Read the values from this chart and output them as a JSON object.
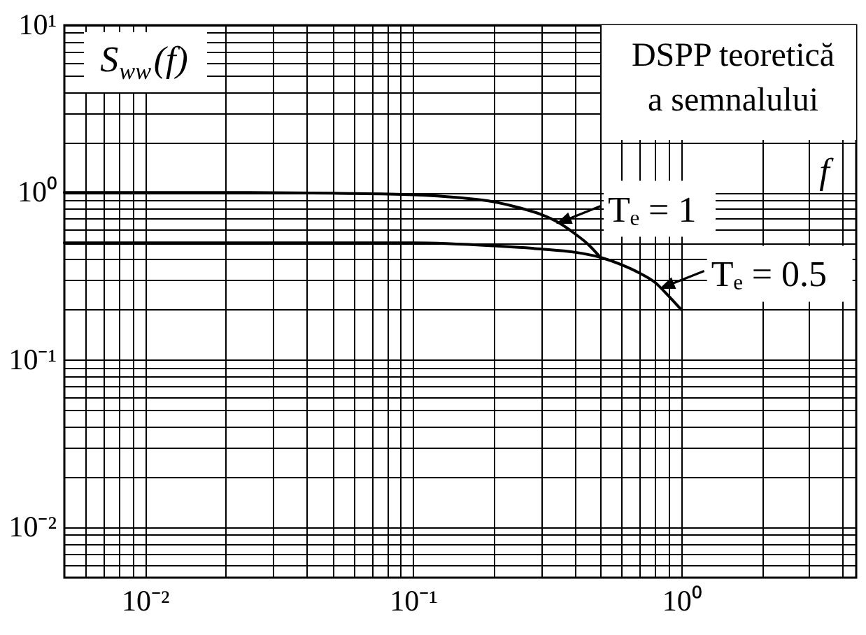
{
  "chart_data": {
    "type": "line",
    "title": "DSPP teoretică a semnalului",
    "xlabel": "f",
    "ylabel": "S$_{ww}$(f)",
    "log": "xy",
    "grid": true,
    "line_style": "solid",
    "xlim": [
      0.005,
      4.5
    ],
    "ylim": [
      0.005,
      10
    ],
    "xticks": [
      {
        "value": 0.006,
        "label": null
      },
      {
        "value": 0.007,
        "label": null
      },
      {
        "value": 0.008,
        "label": null
      },
      {
        "value": 0.009,
        "label": null
      },
      {
        "value": 0.01,
        "label": "10⁻²"
      },
      {
        "value": 0.02,
        "label": null
      },
      {
        "value": 0.03,
        "label": null
      },
      {
        "value": 0.04,
        "label": null
      },
      {
        "value": 0.05,
        "label": null
      },
      {
        "value": 0.06,
        "label": null
      },
      {
        "value": 0.07,
        "label": null
      },
      {
        "value": 0.08,
        "label": null
      },
      {
        "value": 0.09,
        "label": null
      },
      {
        "value": 0.1,
        "label": "10⁻¹"
      },
      {
        "value": 0.2,
        "label": null
      },
      {
        "value": 0.3,
        "label": null
      },
      {
        "value": 0.4,
        "label": null
      },
      {
        "value": 0.5,
        "label": null
      },
      {
        "value": 0.6,
        "label": null
      },
      {
        "value": 0.7,
        "label": null
      },
      {
        "value": 0.8,
        "label": null
      },
      {
        "value": 0.9,
        "label": null
      },
      {
        "value": 1,
        "label": "10⁰"
      },
      {
        "value": 2,
        "label": null
      },
      {
        "value": 3,
        "label": null
      },
      {
        "value": 4,
        "label": null
      }
    ],
    "yticks": [
      {
        "value": 0.006,
        "label": null
      },
      {
        "value": 0.007,
        "label": null
      },
      {
        "value": 0.008,
        "label": null
      },
      {
        "value": 0.009,
        "label": null
      },
      {
        "value": 0.01,
        "label": "10⁻²"
      },
      {
        "value": 0.02,
        "label": null
      },
      {
        "value": 0.03,
        "label": null
      },
      {
        "value": 0.04,
        "label": null
      },
      {
        "value": 0.05,
        "label": null
      },
      {
        "value": 0.06,
        "label": null
      },
      {
        "value": 0.07,
        "label": null
      },
      {
        "value": 0.08,
        "label": null
      },
      {
        "value": 0.09,
        "label": null
      },
      {
        "value": 0.1,
        "label": "10⁻¹"
      },
      {
        "value": 0.2,
        "label": null
      },
      {
        "value": 0.3,
        "label": null
      },
      {
        "value": 0.4,
        "label": null
      },
      {
        "value": 0.5,
        "label": null
      },
      {
        "value": 0.6,
        "label": null
      },
      {
        "value": 0.7,
        "label": null
      },
      {
        "value": 0.8,
        "label": null
      },
      {
        "value": 0.9,
        "label": null
      },
      {
        "value": 1,
        "label": "10⁰"
      },
      {
        "value": 2,
        "label": null
      },
      {
        "value": 3,
        "label": null
      },
      {
        "value": 4,
        "label": null
      },
      {
        "value": 5,
        "label": null
      },
      {
        "value": 6,
        "label": null
      },
      {
        "value": 7,
        "label": null
      },
      {
        "value": 8,
        "label": null
      },
      {
        "value": 9,
        "label": null
      },
      {
        "value": 10,
        "label": "10¹"
      }
    ],
    "series": [
      {
        "color": "#000000",
        "x": [
          0.005,
          0.01,
          0.02,
          0.05,
          0.1,
          0.15,
          0.2,
          0.25,
          0.3,
          0.35,
          0.4,
          0.45,
          0.5
        ],
        "values": [
          1,
          1,
          1,
          0.99,
          0.97,
          0.93,
          0.88,
          0.81,
          0.74,
          0.66,
          0.57,
          0.49,
          0.41
        ]
      },
      {
        "color": "#000000",
        "x": [
          0.005,
          0.01,
          0.02,
          0.05,
          0.1,
          0.2,
          0.3,
          0.4,
          0.5,
          0.6,
          0.7,
          0.8,
          0.9,
          1
        ],
        "values": [
          0.5,
          0.5,
          0.5,
          0.5,
          0.5,
          0.48,
          0.46,
          0.44,
          0.41,
          0.37,
          0.33,
          0.29,
          0.24,
          0.2
        ]
      }
    ],
    "annotations": [
      {
        "text": "Tₑ = 1",
        "x": 0.35,
        "y": 0.66
      },
      {
        "text": "Tₑ = 0.5",
        "x": 0.85,
        "y": 0.27
      }
    ]
  }
}
